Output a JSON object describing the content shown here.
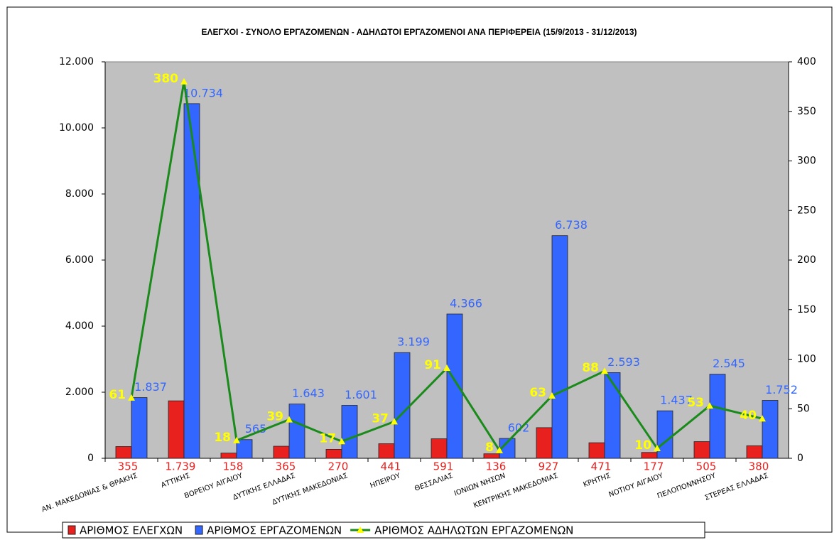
{
  "chart_data": {
    "type": "bar_line",
    "title": "ΕΛΕΓΧΟΙ - ΣΥΝΟΛΟ ΕΡΓΑΖΟΜΕΝΩΝ - ΑΔΗΛΩΤΟΙ ΕΡΓΑΖΟΜΕΝΟΙ ΑΝΑ ΠΕΡΙΦΕΡΕΙΑ (15/9/2013 - 31/12/2013)",
    "categories": [
      "ΑΝ. ΜΑΚΕΔΟΝΙΑΣ & ΘΡΑΚΗΣ",
      "ΑΤΤΙΚΗΣ",
      "ΒΟΡΕΙΟΥ ΑΙΓΑΙΟΥ",
      "ΔΥΤΙΚΗΣ ΕΛΛΑΔΑΣ",
      "ΔΥΤΙΚΗΣ ΜΑΚΕΔΟΝΙΑΣ",
      "ΗΠΕΙΡΟΥ",
      "ΘΕΣΣΑΛΙΑΣ",
      "ΙΟΝΙΩΝ ΝΗΣΩΝ",
      "ΚΕΝΤΡΙΚΗΣ ΜΑΚΕΔΟΝΙΑΣ",
      "ΚΡΗΤΗΣ",
      "ΝΟΤΙΟΥ ΑΙΓΑΙΟΥ",
      "ΠΕΛΟΠΟΝΝΗΣΟΥ",
      "ΣΤΕΡΕΑΣ ΕΛΛΑΔΑΣ"
    ],
    "series": [
      {
        "name": "ΑΡΙΘΜΟΣ ΕΛΕΓΧΩΝ",
        "color": "#e8201e",
        "mark": "bar",
        "values": [
          355,
          1739,
          158,
          365,
          270,
          441,
          591,
          136,
          927,
          471,
          177,
          505,
          380
        ],
        "value_labels": [
          "355",
          "1.739",
          "158",
          "365",
          "270",
          "441",
          "591",
          "136",
          "927",
          "471",
          "177",
          "505",
          "380"
        ]
      },
      {
        "name": "ΑΡΙΘΜΟΣ ΕΡΓΑΖΟΜΕΝΩΝ",
        "color": "#3366ff",
        "mark": "bar",
        "values": [
          1837,
          10734,
          565,
          1643,
          1601,
          3199,
          4366,
          602,
          6738,
          2593,
          1437,
          2545,
          1752
        ],
        "value_labels": [
          "1.837",
          "10.734",
          "565",
          "1.643",
          "1.601",
          "3.199",
          "4.366",
          "602",
          "6.738",
          "2.593",
          "1.437",
          "2.545",
          "1.752"
        ]
      },
      {
        "name": "ΑΡΙΘΜΟΣ ΑΔΗΛΩΤΩΝ ΕΡΓΑΖΟΜΕΝΩΝ",
        "color": "#1a8a1a",
        "marker_color": "#ffff00",
        "mark": "line",
        "axis": "y2",
        "values": [
          61,
          380,
          18,
          39,
          17,
          37,
          91,
          8,
          63,
          88,
          10,
          53,
          40
        ]
      }
    ],
    "ylim": [
      0,
      12000
    ],
    "yticks": [
      0,
      {
        "value": 2000,
        "label": "2.000"
      },
      {
        "value": 4000,
        "label": "4.000"
      },
      {
        "value": 6000,
        "label": "6.000"
      },
      {
        "value": 8000,
        "label": "8.000"
      },
      {
        "value": 10000,
        "label": "10.000"
      },
      {
        "value": 12000,
        "label": "12.000"
      }
    ],
    "y2lim": [
      0,
      400
    ],
    "y2ticks": [
      0,
      50,
      100,
      150,
      200,
      250,
      300,
      350,
      400
    ],
    "grid": false,
    "legend": "bottom"
  }
}
